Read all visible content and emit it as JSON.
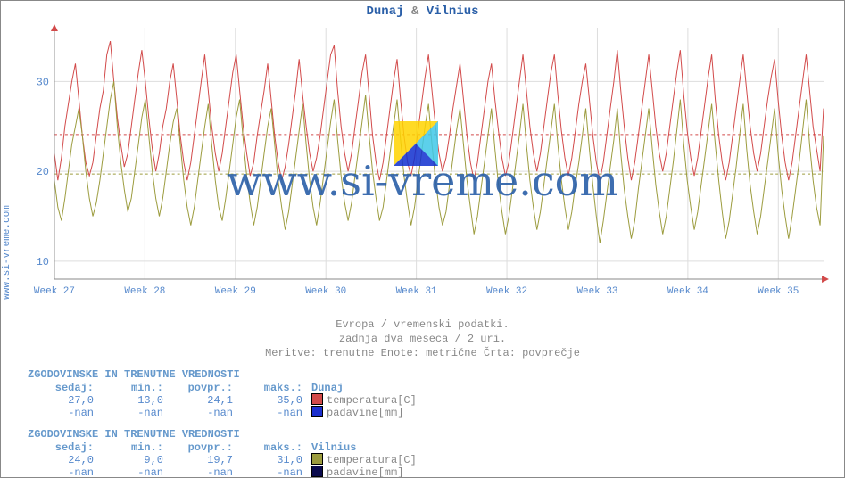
{
  "sidebar_url": "www.si-vreme.com",
  "title": {
    "city1": "Dunaj",
    "sep": "&",
    "city2": "Vilnius"
  },
  "watermark_text": "www.si-vreme.com",
  "subinfo": {
    "line1": "Evropa / vremenski podatki.",
    "line2": "zadnja dva meseca / 2 uri.",
    "line3": "Meritve: trenutne  Enote: metrične  Črta: povprečje"
  },
  "chart": {
    "type": "line",
    "background_color": "#ffffff",
    "axis_color": "#888888",
    "axis_arrow_color": "#d24a4a",
    "grid_color": "#dddddd",
    "ylim": [
      8,
      36
    ],
    "yticks": [
      10,
      20,
      30
    ],
    "ytick_fontsize": 12,
    "ytick_color": "#5588cc",
    "xticks": [
      "Week 27",
      "Week 28",
      "Week 29",
      "Week 30",
      "Week 31",
      "Week 32",
      "Week 33",
      "Week 34",
      "Week 35"
    ],
    "xtick_fontsize": 11,
    "xtick_color": "#5588cc",
    "avg_lines": [
      {
        "value": 24.1,
        "color": "#d24a4a",
        "dash": "3,3"
      },
      {
        "value": 19.7,
        "color": "#9c9c3e",
        "dash": "3,3"
      }
    ],
    "series": [
      {
        "name": "Dunaj temperatura",
        "color": "#d24a4a",
        "line_width": 1,
        "values": [
          22.0,
          19.0,
          21.5,
          25.0,
          27.5,
          30.0,
          32.0,
          28.0,
          24.0,
          21.0,
          19.5,
          21.0,
          24.0,
          27.0,
          29.0,
          33.0,
          34.5,
          30.0,
          26.0,
          23.0,
          20.5,
          22.0,
          25.0,
          28.0,
          31.0,
          33.5,
          30.0,
          26.0,
          22.5,
          20.0,
          22.0,
          25.0,
          27.0,
          30.0,
          32.0,
          28.0,
          24.0,
          21.0,
          19.0,
          21.0,
          24.0,
          27.0,
          30.0,
          33.0,
          29.0,
          25.0,
          22.0,
          20.0,
          22.0,
          25.0,
          28.0,
          31.0,
          33.0,
          29.0,
          25.0,
          22.0,
          19.5,
          21.0,
          24.0,
          26.5,
          29.0,
          32.0,
          28.0,
          24.0,
          21.0,
          19.0,
          20.5,
          23.0,
          26.0,
          29.0,
          32.5,
          28.5,
          25.0,
          22.0,
          20.0,
          21.5,
          24.0,
          27.0,
          30.0,
          33.0,
          34.0,
          29.0,
          25.0,
          22.0,
          20.0,
          22.0,
          25.0,
          28.0,
          31.0,
          33.0,
          28.5,
          24.0,
          21.0,
          19.0,
          21.0,
          24.0,
          27.0,
          30.0,
          32.5,
          28.0,
          24.0,
          21.0,
          19.5,
          21.5,
          24.5,
          27.5,
          30.5,
          33.0,
          29.0,
          25.0,
          22.0,
          20.0,
          21.5,
          24.0,
          27.0,
          29.5,
          32.0,
          28.0,
          24.0,
          21.0,
          19.0,
          21.0,
          24.0,
          27.0,
          30.0,
          32.0,
          28.0,
          24.5,
          21.5,
          19.5,
          21.0,
          24.0,
          27.0,
          30.0,
          33.0,
          29.0,
          25.0,
          22.0,
          20.0,
          22.0,
          25.0,
          28.0,
          31.0,
          33.0,
          28.5,
          24.5,
          21.5,
          19.5,
          21.5,
          24.5,
          27.5,
          30.0,
          32.0,
          28.0,
          24.0,
          21.0,
          19.0,
          21.0,
          24.0,
          27.0,
          30.0,
          33.5,
          29.0,
          25.0,
          21.5,
          19.0,
          21.0,
          24.0,
          27.0,
          30.0,
          33.0,
          29.0,
          25.0,
          22.0,
          20.0,
          22.0,
          25.0,
          28.0,
          31.0,
          33.5,
          28.5,
          24.5,
          21.5,
          19.5,
          21.5,
          24.5,
          27.5,
          30.5,
          33.0,
          28.0,
          24.0,
          21.0,
          19.0,
          21.0,
          24.0,
          27.0,
          30.0,
          33.0,
          29.0,
          25.0,
          22.0,
          20.0,
          22.0,
          25.0,
          28.0,
          30.5,
          32.5,
          28.0,
          24.0,
          21.0,
          19.0,
          21.0,
          24.0,
          27.0,
          30.0,
          33.0,
          29.0,
          25.0,
          22.5,
          20.0,
          27.0
        ]
      },
      {
        "name": "Vilnius temperatura",
        "color": "#9c9c3e",
        "line_width": 1,
        "values": [
          19.0,
          16.0,
          14.5,
          17.0,
          20.0,
          23.0,
          25.0,
          27.0,
          24.0,
          20.0,
          17.0,
          15.0,
          16.5,
          19.0,
          22.0,
          25.0,
          28.0,
          30.0,
          25.0,
          21.0,
          18.0,
          15.5,
          17.0,
          20.0,
          23.0,
          26.0,
          28.0,
          24.0,
          20.0,
          17.0,
          15.0,
          17.0,
          20.0,
          23.0,
          25.5,
          27.0,
          23.0,
          19.0,
          16.0,
          14.0,
          16.0,
          19.0,
          22.0,
          25.0,
          27.5,
          23.0,
          19.0,
          16.0,
          14.5,
          17.0,
          20.0,
          23.0,
          26.0,
          28.0,
          23.5,
          19.5,
          16.5,
          14.0,
          16.0,
          19.0,
          22.0,
          25.0,
          27.0,
          23.0,
          19.0,
          16.0,
          13.5,
          15.5,
          18.5,
          21.5,
          24.5,
          27.5,
          23.0,
          19.0,
          16.0,
          14.0,
          16.5,
          19.5,
          22.5,
          25.5,
          28.0,
          23.5,
          19.5,
          16.5,
          14.5,
          16.5,
          19.5,
          22.5,
          25.5,
          28.5,
          24.0,
          20.0,
          17.0,
          14.5,
          16.0,
          19.0,
          22.0,
          25.0,
          28.0,
          23.5,
          19.5,
          16.5,
          14.0,
          16.0,
          19.0,
          22.0,
          25.0,
          27.5,
          23.0,
          19.0,
          16.0,
          14.0,
          15.5,
          18.5,
          21.5,
          24.5,
          27.0,
          23.0,
          19.0,
          16.0,
          13.0,
          15.0,
          18.0,
          21.0,
          24.0,
          27.0,
          22.5,
          18.5,
          15.5,
          13.0,
          15.0,
          18.0,
          21.0,
          24.0,
          27.5,
          23.0,
          19.0,
          16.0,
          13.5,
          15.5,
          18.5,
          21.5,
          24.5,
          27.5,
          23.0,
          19.0,
          16.0,
          13.5,
          15.5,
          18.5,
          21.0,
          24.0,
          27.0,
          22.5,
          18.5,
          15.0,
          12.0,
          14.5,
          17.5,
          20.5,
          23.5,
          27.0,
          22.0,
          18.0,
          15.0,
          12.5,
          14.5,
          18.0,
          21.0,
          24.0,
          27.0,
          22.5,
          18.5,
          15.5,
          13.0,
          15.0,
          18.0,
          21.0,
          24.5,
          28.0,
          23.0,
          19.0,
          16.0,
          13.5,
          15.5,
          18.5,
          21.5,
          24.5,
          27.5,
          23.0,
          19.0,
          15.5,
          12.5,
          14.5,
          17.5,
          20.5,
          24.0,
          27.5,
          22.5,
          18.5,
          15.5,
          13.0,
          15.0,
          18.0,
          21.0,
          24.0,
          27.0,
          22.0,
          18.0,
          15.0,
          12.5,
          15.0,
          18.0,
          21.0,
          24.5,
          28.0,
          23.0,
          19.0,
          16.0,
          14.0,
          24.0
        ]
      }
    ]
  },
  "tables": [
    {
      "title": "ZGODOVINSKE IN TRENUTNE VREDNOSTI",
      "city": "Dunaj",
      "headers": [
        "sedaj:",
        "min.:",
        "povpr.:",
        "maks.:"
      ],
      "rows": [
        {
          "cells": [
            "27,0",
            "13,0",
            "24,1",
            "35,0"
          ],
          "swatch": "#d24a4a",
          "label": "temperatura[C]"
        },
        {
          "cells": [
            "-nan",
            "-nan",
            "-nan",
            "-nan"
          ],
          "swatch": "#1b2fce",
          "label": "padavine[mm]"
        }
      ]
    },
    {
      "title": "ZGODOVINSKE IN TRENUTNE VREDNOSTI",
      "city": "Vilnius",
      "headers": [
        "sedaj:",
        "min.:",
        "povpr.:",
        "maks.:"
      ],
      "rows": [
        {
          "cells": [
            "24,0",
            "9,0",
            "19,7",
            "31,0"
          ],
          "swatch": "#9c9c3e",
          "label": "temperatura[C]"
        },
        {
          "cells": [
            "-nan",
            "-nan",
            "-nan",
            "-nan"
          ],
          "swatch": "#0a0a4d",
          "label": "padavine[mm]"
        }
      ]
    }
  ],
  "logo_colors": {
    "tri_top": "#ffd400",
    "tri_bottom": "#1030d0",
    "tri_right": "#40c8e8"
  }
}
